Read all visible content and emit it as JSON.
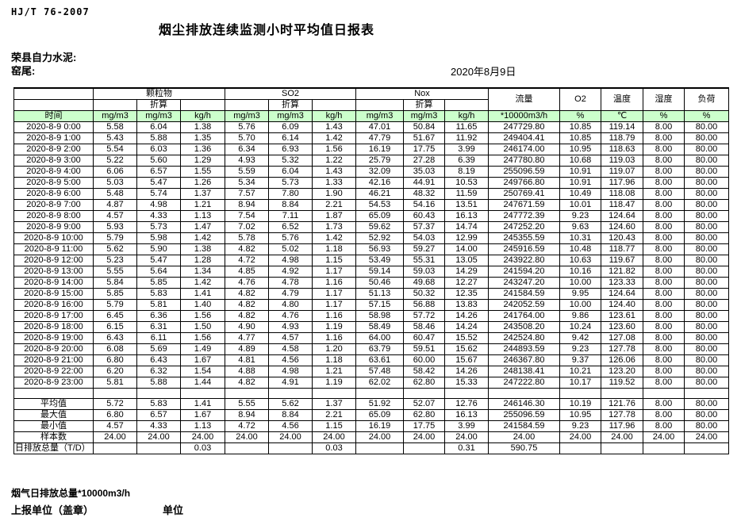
{
  "page": {
    "standard_code": "HJ/T  76-2007",
    "title": "烟尘排放连续监测小时平均值日报表",
    "company": "荣县自力水泥:",
    "location": "窑尾:",
    "date": "2020年8月9日"
  },
  "colors": {
    "header_green": "#ccffcc",
    "border": "#000000"
  },
  "table": {
    "time_header": "时间",
    "converted_label": "折算",
    "groups": [
      {
        "label": "颗粒物"
      },
      {
        "label": "SO2"
      },
      {
        "label": "Nox"
      }
    ],
    "single_columns": [
      "流量",
      "O2",
      "温度",
      "湿度",
      "负荷"
    ],
    "unit_cells": [
      "mg/m3",
      "mg/m3",
      "kg/h",
      "mg/m3",
      "mg/m3",
      "kg/h",
      "mg/m3",
      "mg/m3",
      "kg/h",
      "*10000m3/h",
      "%",
      "℃",
      "%",
      "%"
    ],
    "rows": [
      {
        "time": "2020-8-9 0:00",
        "values": [
          "5.58",
          "6.04",
          "1.38",
          "5.76",
          "6.09",
          "1.43",
          "47.01",
          "50.84",
          "11.65",
          "247729.80",
          "10.85",
          "119.14",
          "8.00",
          "80.00"
        ]
      },
      {
        "time": "2020-8-9 1:00",
        "values": [
          "5.43",
          "5.88",
          "1.35",
          "5.70",
          "6.14",
          "1.42",
          "47.79",
          "51.67",
          "11.92",
          "249404.41",
          "10.85",
          "118.79",
          "8.00",
          "80.00"
        ]
      },
      {
        "time": "2020-8-9 2:00",
        "values": [
          "5.54",
          "6.03",
          "1.36",
          "6.34",
          "6.93",
          "1.56",
          "16.19",
          "17.75",
          "3.99",
          "246174.00",
          "10.95",
          "118.63",
          "8.00",
          "80.00"
        ]
      },
      {
        "time": "2020-8-9 3:00",
        "values": [
          "5.22",
          "5.60",
          "1.29",
          "4.93",
          "5.32",
          "1.22",
          "25.79",
          "27.28",
          "6.39",
          "247780.80",
          "10.68",
          "119.03",
          "8.00",
          "80.00"
        ]
      },
      {
        "time": "2020-8-9 4:00",
        "values": [
          "6.06",
          "6.57",
          "1.55",
          "5.59",
          "6.04",
          "1.43",
          "32.09",
          "35.03",
          "8.19",
          "255096.59",
          "10.91",
          "119.07",
          "8.00",
          "80.00"
        ]
      },
      {
        "time": "2020-8-9 5:00",
        "values": [
          "5.03",
          "5.47",
          "1.26",
          "5.34",
          "5.73",
          "1.33",
          "42.16",
          "44.91",
          "10.53",
          "249766.80",
          "10.91",
          "117.96",
          "8.00",
          "80.00"
        ]
      },
      {
        "time": "2020-8-9 6:00",
        "values": [
          "5.48",
          "5.74",
          "1.37",
          "7.57",
          "7.80",
          "1.90",
          "46.21",
          "48.32",
          "11.59",
          "250769.41",
          "10.49",
          "118.08",
          "8.00",
          "80.00"
        ]
      },
      {
        "time": "2020-8-9 7:00",
        "values": [
          "4.87",
          "4.98",
          "1.21",
          "8.94",
          "8.84",
          "2.21",
          "54.53",
          "54.16",
          "13.51",
          "247671.59",
          "10.01",
          "118.47",
          "8.00",
          "80.00"
        ]
      },
      {
        "time": "2020-8-9 8:00",
        "values": [
          "4.57",
          "4.33",
          "1.13",
          "7.54",
          "7.11",
          "1.87",
          "65.09",
          "60.43",
          "16.13",
          "247772.39",
          "9.23",
          "124.64",
          "8.00",
          "80.00"
        ]
      },
      {
        "time": "2020-8-9 9:00",
        "values": [
          "5.93",
          "5.73",
          "1.47",
          "7.02",
          "6.52",
          "1.73",
          "59.62",
          "57.37",
          "14.74",
          "247252.20",
          "9.63",
          "124.60",
          "8.00",
          "80.00"
        ]
      },
      {
        "time": "2020-8-9 10:00",
        "values": [
          "5.79",
          "5.98",
          "1.42",
          "5.78",
          "5.76",
          "1.42",
          "52.92",
          "54.03",
          "12.99",
          "245355.59",
          "10.31",
          "120.43",
          "8.00",
          "80.00"
        ]
      },
      {
        "time": "2020-8-9 11:00",
        "values": [
          "5.62",
          "5.90",
          "1.38",
          "4.82",
          "5.02",
          "1.18",
          "56.93",
          "59.27",
          "14.00",
          "245916.59",
          "10.48",
          "118.77",
          "8.00",
          "80.00"
        ]
      },
      {
        "time": "2020-8-9 12:00",
        "values": [
          "5.23",
          "5.47",
          "1.28",
          "4.72",
          "4.98",
          "1.15",
          "53.49",
          "55.31",
          "13.05",
          "243922.80",
          "10.63",
          "119.67",
          "8.00",
          "80.00"
        ]
      },
      {
        "time": "2020-8-9 13:00",
        "values": [
          "5.55",
          "5.64",
          "1.34",
          "4.85",
          "4.92",
          "1.17",
          "59.14",
          "59.03",
          "14.29",
          "241594.20",
          "10.16",
          "121.82",
          "8.00",
          "80.00"
        ]
      },
      {
        "time": "2020-8-9 14:00",
        "values": [
          "5.84",
          "5.85",
          "1.42",
          "4.76",
          "4.78",
          "1.16",
          "50.46",
          "49.68",
          "12.27",
          "243247.20",
          "10.00",
          "123.33",
          "8.00",
          "80.00"
        ]
      },
      {
        "time": "2020-8-9 15:00",
        "values": [
          "5.85",
          "5.83",
          "1.41",
          "4.82",
          "4.79",
          "1.17",
          "51.13",
          "50.32",
          "12.35",
          "241584.59",
          "9.95",
          "124.64",
          "8.00",
          "80.00"
        ]
      },
      {
        "time": "2020-8-9 16:00",
        "values": [
          "5.79",
          "5.81",
          "1.40",
          "4.82",
          "4.80",
          "1.17",
          "57.15",
          "56.88",
          "13.83",
          "242052.59",
          "10.00",
          "124.40",
          "8.00",
          "80.00"
        ]
      },
      {
        "time": "2020-8-9 17:00",
        "values": [
          "6.45",
          "6.36",
          "1.56",
          "4.82",
          "4.76",
          "1.16",
          "58.98",
          "57.72",
          "14.26",
          "241764.00",
          "9.86",
          "123.61",
          "8.00",
          "80.00"
        ]
      },
      {
        "time": "2020-8-9 18:00",
        "values": [
          "6.15",
          "6.31",
          "1.50",
          "4.90",
          "4.93",
          "1.19",
          "58.49",
          "58.46",
          "14.24",
          "243508.20",
          "10.24",
          "123.60",
          "8.00",
          "80.00"
        ]
      },
      {
        "time": "2020-8-9 19:00",
        "values": [
          "6.43",
          "6.11",
          "1.56",
          "4.77",
          "4.57",
          "1.16",
          "64.00",
          "60.47",
          "15.52",
          "242524.80",
          "9.42",
          "127.08",
          "8.00",
          "80.00"
        ]
      },
      {
        "time": "2020-8-9 20:00",
        "values": [
          "6.08",
          "5.69",
          "1.49",
          "4.89",
          "4.58",
          "1.20",
          "63.79",
          "59.51",
          "15.62",
          "244893.59",
          "9.23",
          "127.78",
          "8.00",
          "80.00"
        ]
      },
      {
        "time": "2020-8-9 21:00",
        "values": [
          "6.80",
          "6.43",
          "1.67",
          "4.81",
          "4.56",
          "1.18",
          "63.61",
          "60.00",
          "15.67",
          "246367.80",
          "9.37",
          "126.06",
          "8.00",
          "80.00"
        ]
      },
      {
        "time": "2020-8-9 22:00",
        "values": [
          "6.20",
          "6.32",
          "1.54",
          "4.88",
          "4.98",
          "1.21",
          "57.48",
          "58.42",
          "14.26",
          "248138.41",
          "10.21",
          "123.20",
          "8.00",
          "80.00"
        ]
      },
      {
        "time": "2020-8-9 23:00",
        "values": [
          "5.81",
          "5.88",
          "1.44",
          "4.82",
          "4.91",
          "1.19",
          "62.02",
          "62.80",
          "15.33",
          "247222.80",
          "10.17",
          "119.52",
          "8.00",
          "80.00"
        ]
      }
    ],
    "summary_rows": [
      {
        "label": "平均值",
        "label_align": "right",
        "values": [
          "5.72",
          "5.83",
          "1.41",
          "5.55",
          "5.62",
          "1.37",
          "51.92",
          "52.07",
          "12.76",
          "246146.30",
          "10.19",
          "121.76",
          "8.00",
          "80.00"
        ]
      },
      {
        "label": "最大值",
        "label_align": "right",
        "values": [
          "6.80",
          "6.57",
          "1.67",
          "8.94",
          "8.84",
          "2.21",
          "65.09",
          "62.80",
          "16.13",
          "255096.59",
          "10.95",
          "127.78",
          "8.00",
          "80.00"
        ]
      },
      {
        "label": "最小值",
        "label_align": "right",
        "values": [
          "4.57",
          "4.33",
          "1.13",
          "4.72",
          "4.56",
          "1.15",
          "16.19",
          "17.75",
          "3.99",
          "241584.59",
          "9.23",
          "117.96",
          "8.00",
          "80.00"
        ]
      },
      {
        "label": "样本数",
        "label_align": "right",
        "values": [
          "24.00",
          "24.00",
          "24.00",
          "24.00",
          "24.00",
          "24.00",
          "24.00",
          "24.00",
          "24.00",
          "24.00",
          "24.00",
          "24.00",
          "24.00",
          "24.00"
        ]
      },
      {
        "label": "日排放总量（T/D）",
        "label_align": "left",
        "values": [
          "",
          "",
          "0.03",
          "",
          "",
          "0.03",
          "",
          "",
          "0.31",
          "590.75",
          "",
          "",
          "",
          ""
        ]
      }
    ]
  },
  "footer": {
    "note": "烟气日排放总量*10000m3/h",
    "report_unit": "上报单位（盖章）",
    "unit": "单位"
  }
}
